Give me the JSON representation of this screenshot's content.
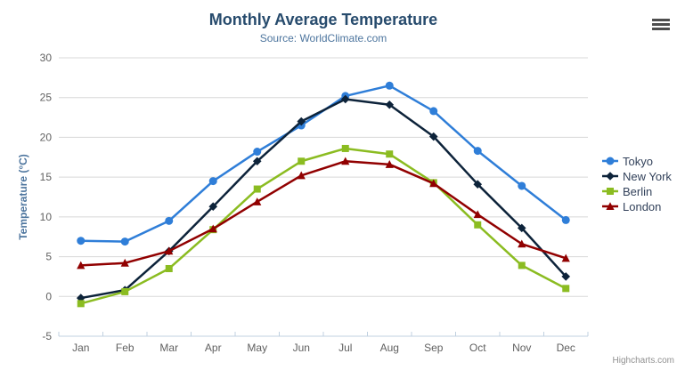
{
  "chart": {
    "title": "Monthly Average Temperature",
    "subtitle": "Source: WorldClimate.com",
    "credit": "Highcharts.com"
  },
  "icons": {
    "context_menu": "hamburger-icon"
  },
  "colors": {
    "title": "#274b6d",
    "subtitle": "#4d759e",
    "axis_title": "#4d759e",
    "tick_label": "#606060",
    "legend_text": "#33425b",
    "gridline": "#d8d8d8",
    "axis_line": "#c0d0e0",
    "credit": "#909090"
  },
  "chart_data": {
    "type": "line",
    "title": "Monthly Average Temperature",
    "subtitle": "Source: WorldClimate.com",
    "categories": [
      "Jan",
      "Feb",
      "Mar",
      "Apr",
      "May",
      "Jun",
      "Jul",
      "Aug",
      "Sep",
      "Oct",
      "Nov",
      "Dec"
    ],
    "series": [
      {
        "name": "Tokyo",
        "color": "#2f7ed8",
        "marker": "circle",
        "values": [
          7.0,
          6.9,
          9.5,
          14.5,
          18.2,
          21.5,
          25.2,
          26.5,
          23.3,
          18.3,
          13.9,
          9.6
        ]
      },
      {
        "name": "New York",
        "color": "#0d233a",
        "marker": "diamond",
        "values": [
          -0.2,
          0.8,
          5.7,
          11.3,
          17.0,
          22.0,
          24.8,
          24.1,
          20.1,
          14.1,
          8.6,
          2.5
        ]
      },
      {
        "name": "Berlin",
        "color": "#8bbc21",
        "marker": "square",
        "values": [
          -0.9,
          0.6,
          3.5,
          8.4,
          13.5,
          17.0,
          18.6,
          17.9,
          14.3,
          9.0,
          3.9,
          1.0
        ]
      },
      {
        "name": "London",
        "color": "#910000",
        "marker": "triangle",
        "values": [
          3.9,
          4.2,
          5.7,
          8.5,
          11.9,
          15.2,
          17.0,
          16.6,
          14.2,
          10.3,
          6.6,
          4.8
        ]
      }
    ],
    "xlabel": "",
    "ylabel": "Temperature (°C)",
    "ylim": [
      -5,
      30
    ],
    "ytick_step": 5,
    "grid": true,
    "legend_position": "right"
  }
}
